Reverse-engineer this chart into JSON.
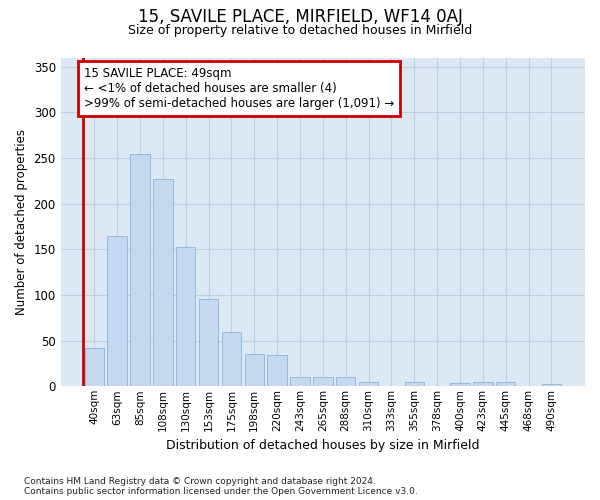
{
  "title": "15, SAVILE PLACE, MIRFIELD, WF14 0AJ",
  "subtitle": "Size of property relative to detached houses in Mirfield",
  "xlabel": "Distribution of detached houses by size in Mirfield",
  "ylabel": "Number of detached properties",
  "categories": [
    "40sqm",
    "63sqm",
    "85sqm",
    "108sqm",
    "130sqm",
    "153sqm",
    "175sqm",
    "198sqm",
    "220sqm",
    "243sqm",
    "265sqm",
    "288sqm",
    "310sqm",
    "333sqm",
    "355sqm",
    "378sqm",
    "400sqm",
    "423sqm",
    "445sqm",
    "468sqm",
    "490sqm"
  ],
  "values": [
    42,
    164,
    254,
    227,
    152,
    96,
    59,
    35,
    34,
    10,
    10,
    10,
    5,
    0,
    5,
    0,
    4,
    5,
    5,
    0,
    3
  ],
  "bar_color": "#c5d8f0",
  "bar_edge_color": "#8ab4d8",
  "annotation_text": "15 SAVILE PLACE: 49sqm\n← <1% of detached houses are smaller (4)\n>99% of semi-detached houses are larger (1,091) →",
  "annotation_box_facecolor": "#ffffff",
  "annotation_box_edgecolor": "#cc0000",
  "red_line_color": "#cc0000",
  "grid_color": "#c0cfdf",
  "background_color": "#dce8f4",
  "ylim": [
    0,
    360
  ],
  "yticks": [
    0,
    50,
    100,
    150,
    200,
    250,
    300,
    350
  ],
  "footnote1": "Contains HM Land Registry data © Crown copyright and database right 2024.",
  "footnote2": "Contains public sector information licensed under the Open Government Licence v3.0."
}
